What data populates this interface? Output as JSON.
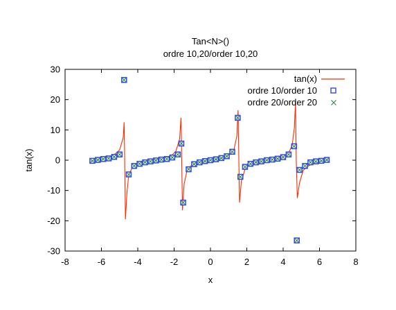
{
  "chart_data": {
    "type": "scatter",
    "title": "Tan<N>()",
    "subtitle": "ordre 10,20/order 10,20",
    "xlabel": "x",
    "ylabel": "tan(x)",
    "xlim": [
      -8,
      8
    ],
    "ylim": [
      -30,
      30
    ],
    "xticks": [
      "-8",
      "-6",
      "-4",
      "-2",
      "0",
      "2",
      "4",
      "6",
      "8"
    ],
    "yticks": [
      "30",
      "20",
      "10",
      "0",
      "-10",
      "-20",
      "-30"
    ],
    "grid": false,
    "legend_position": "top-right",
    "series": [
      {
        "name": "tan(x)",
        "style": "line",
        "color": "#ff2a00",
        "x": [
          -6.6,
          -6.4,
          -6.2,
          -6.0,
          -5.8,
          -5.6,
          -5.4,
          -5.2,
          -5.0,
          -4.8,
          -4.75,
          -4.72,
          -4.68,
          -4.6,
          -4.5,
          -4.3,
          -4.1,
          -3.9,
          -3.7,
          -3.5,
          -3.3,
          -3.1,
          -2.9,
          -2.7,
          -2.5,
          -2.3,
          -2.1,
          -1.9,
          -1.7,
          -1.62,
          -1.58,
          -1.54,
          -1.45,
          -1.3,
          -1.1,
          -0.9,
          -0.7,
          -0.5,
          -0.3,
          -0.1,
          0.1,
          0.3,
          0.5,
          0.7,
          0.9,
          1.1,
          1.3,
          1.45,
          1.52,
          1.56,
          1.6,
          1.7,
          1.9,
          2.1,
          2.3,
          2.5,
          2.7,
          2.9,
          3.1,
          3.3,
          3.5,
          3.7,
          3.9,
          4.1,
          4.3,
          4.5,
          4.62,
          4.68,
          4.72,
          4.78,
          4.9,
          5.1,
          5.3,
          5.5,
          5.7,
          5.9,
          6.1,
          6.3,
          6.5
        ],
        "y": [
          -0.3,
          -0.1,
          0.1,
          0.3,
          0.6,
          1.0,
          1.5,
          2.3,
          3.4,
          7.5,
          12.5,
          0,
          -19.5,
          -11,
          -5,
          -2.4,
          -1.4,
          -0.9,
          -0.6,
          -0.4,
          -0.2,
          0,
          0.2,
          0.5,
          0.8,
          1.2,
          1.8,
          3.0,
          7.0,
          14,
          0,
          -16.5,
          -8,
          -3.6,
          -2.0,
          -1.3,
          -0.8,
          -0.5,
          -0.3,
          -0.1,
          0.1,
          0.3,
          0.5,
          0.8,
          1.3,
          2.0,
          3.6,
          8,
          16.5,
          0,
          -14,
          -7,
          -3.0,
          -1.8,
          -1.2,
          -0.8,
          -0.5,
          -0.2,
          0,
          0.2,
          0.4,
          0.6,
          0.9,
          1.4,
          2.4,
          5.0,
          11,
          19.5,
          0,
          -12.5,
          -7.5,
          -3.4,
          -2.3,
          -1.5,
          -1.0,
          -0.6,
          -0.3,
          -0.1,
          0.1
        ]
      },
      {
        "name": "ordre 10/order 10",
        "style": "square",
        "color": "#2a4ad8",
        "x": [
          -6.5,
          -6.2,
          -5.9,
          -5.6,
          -5.3,
          -5.0,
          -4.75,
          -4.5,
          -4.2,
          -3.9,
          -3.6,
          -3.3,
          -3.0,
          -2.7,
          -2.4,
          -2.1,
          -1.8,
          -1.6,
          -1.5,
          -1.2,
          -0.9,
          -0.6,
          -0.3,
          0.0,
          0.3,
          0.6,
          0.9,
          1.2,
          1.5,
          1.65,
          1.9,
          2.2,
          2.5,
          2.8,
          3.1,
          3.4,
          3.7,
          4.0,
          4.3,
          4.6,
          4.75,
          4.9,
          5.2,
          5.5,
          5.8,
          6.1,
          6.4
        ],
        "y": [
          -0.2,
          0.1,
          0.4,
          0.6,
          1.1,
          1.9,
          26.5,
          -4.7,
          -1.9,
          -1.2,
          -0.7,
          -0.4,
          -0.1,
          0.2,
          0.4,
          0.9,
          1.9,
          5.5,
          -14,
          -3.0,
          -1.3,
          -0.7,
          -0.3,
          0.0,
          0.3,
          0.7,
          1.3,
          2.8,
          14,
          -5.5,
          -2.2,
          -1.2,
          -0.7,
          -0.4,
          0.0,
          0.2,
          0.5,
          1.0,
          1.9,
          4.6,
          -26.5,
          -3.2,
          -1.9,
          -0.7,
          -0.4,
          -0.2,
          0.1
        ]
      },
      {
        "name": "ordre 20/order 20",
        "style": "cross",
        "color": "#2e8b57",
        "x": [
          -6.5,
          -6.2,
          -5.9,
          -5.6,
          -5.3,
          -5.0,
          -4.75,
          -4.5,
          -4.2,
          -3.9,
          -3.6,
          -3.3,
          -3.0,
          -2.7,
          -2.4,
          -2.1,
          -1.8,
          -1.6,
          -1.5,
          -1.2,
          -0.9,
          -0.6,
          -0.3,
          0.0,
          0.3,
          0.6,
          0.9,
          1.2,
          1.5,
          1.65,
          1.9,
          2.2,
          2.5,
          2.8,
          3.1,
          3.4,
          3.7,
          4.0,
          4.3,
          4.6,
          4.75,
          4.9,
          5.2,
          5.5,
          5.8,
          6.1,
          6.4
        ],
        "y": [
          -0.2,
          0.1,
          0.4,
          0.6,
          1.1,
          1.9,
          26.5,
          -4.7,
          -1.9,
          -1.2,
          -0.7,
          -0.4,
          -0.1,
          0.2,
          0.4,
          0.9,
          1.9,
          5.5,
          -14,
          -3.0,
          -1.3,
          -0.7,
          -0.3,
          0.0,
          0.3,
          0.7,
          1.3,
          2.8,
          14,
          -5.5,
          -2.2,
          -1.2,
          -0.7,
          -0.4,
          0.0,
          0.2,
          0.5,
          1.0,
          1.9,
          4.6,
          -26.5,
          -3.2,
          -1.9,
          -0.7,
          -0.4,
          -0.2,
          0.1
        ]
      }
    ]
  }
}
